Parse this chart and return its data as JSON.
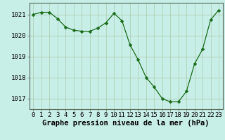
{
  "hours": [
    0,
    1,
    2,
    3,
    4,
    5,
    6,
    7,
    8,
    9,
    10,
    11,
    12,
    13,
    14,
    15,
    16,
    17,
    18,
    19,
    20,
    21,
    22,
    23
  ],
  "pressure": [
    1021.0,
    1021.1,
    1021.1,
    1020.8,
    1020.4,
    1020.25,
    1020.2,
    1020.2,
    1020.35,
    1020.6,
    1021.05,
    1020.7,
    1019.55,
    1018.85,
    1018.0,
    1017.55,
    1017.0,
    1016.85,
    1016.85,
    1017.35,
    1018.65,
    1019.35,
    1020.75,
    1021.2
  ],
  "line_color": "#1a6b1a",
  "marker": "D",
  "marker_size": 2.5,
  "bg_color": "#c8eee8",
  "grid_color": "#aaccaa",
  "xlabel": "Graphe pression niveau de la mer (hPa)",
  "xlabel_fontsize": 7.5,
  "tick_fontsize": 6.5,
  "ylim": [
    1016.5,
    1021.55
  ],
  "yticks": [
    1017,
    1018,
    1019,
    1020,
    1021
  ],
  "xlim": [
    -0.5,
    23.5
  ],
  "xtick_labels": [
    "0",
    "1",
    "2",
    "3",
    "4",
    "5",
    "6",
    "7",
    "8",
    "9",
    "10",
    "11",
    "12",
    "13",
    "14",
    "15",
    "16",
    "17",
    "18",
    "19",
    "20",
    "21",
    "22",
    "23"
  ]
}
